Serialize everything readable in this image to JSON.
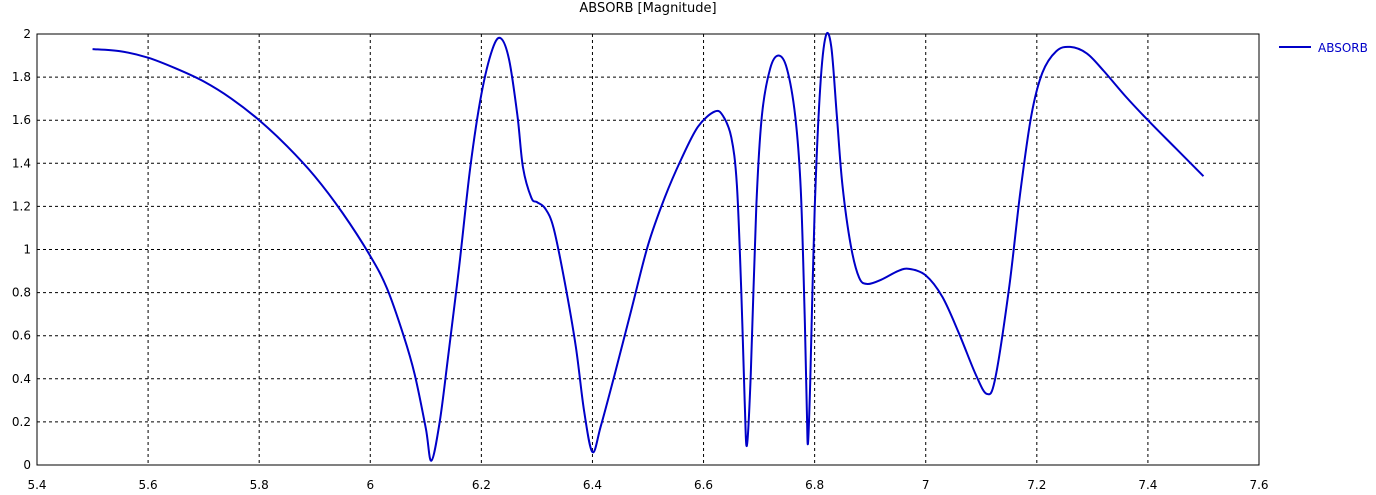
{
  "chart_data": {
    "type": "line",
    "title": "ABSORB [Magnitude]",
    "xlabel": "",
    "ylabel": "",
    "xlim": [
      5.4,
      7.6
    ],
    "ylim": [
      0,
      2
    ],
    "xticks": [
      "5.4",
      "5.6",
      "5.8",
      "6",
      "6.2",
      "6.4",
      "6.6",
      "6.8",
      "7",
      "7.2",
      "7.4",
      "7.6"
    ],
    "yticks": [
      "0",
      "0.2",
      "0.4",
      "0.6",
      "0.8",
      "1",
      "1.2",
      "1.4",
      "1.6",
      "1.8",
      "2"
    ],
    "grid": true,
    "legend_position": "top-right",
    "series": [
      {
        "name": "ABSORB",
        "color": "#0000c8",
        "points": [
          [
            5.5,
            1.93
          ],
          [
            5.55,
            1.92
          ],
          [
            5.6,
            1.89
          ],
          [
            5.65,
            1.84
          ],
          [
            5.7,
            1.78
          ],
          [
            5.75,
            1.7
          ],
          [
            5.8,
            1.6
          ],
          [
            5.85,
            1.48
          ],
          [
            5.9,
            1.34
          ],
          [
            5.95,
            1.17
          ],
          [
            6.0,
            0.97
          ],
          [
            6.03,
            0.82
          ],
          [
            6.06,
            0.6
          ],
          [
            6.08,
            0.42
          ],
          [
            6.1,
            0.17
          ],
          [
            6.11,
            0.02
          ],
          [
            6.125,
            0.2
          ],
          [
            6.14,
            0.5
          ],
          [
            6.16,
            0.92
          ],
          [
            6.18,
            1.38
          ],
          [
            6.2,
            1.72
          ],
          [
            6.22,
            1.93
          ],
          [
            6.235,
            1.98
          ],
          [
            6.25,
            1.88
          ],
          [
            6.265,
            1.62
          ],
          [
            6.275,
            1.38
          ],
          [
            6.29,
            1.24
          ],
          [
            6.3,
            1.22
          ],
          [
            6.315,
            1.19
          ],
          [
            6.33,
            1.1
          ],
          [
            6.35,
            0.85
          ],
          [
            6.37,
            0.55
          ],
          [
            6.385,
            0.25
          ],
          [
            6.4,
            0.06
          ],
          [
            6.415,
            0.18
          ],
          [
            6.44,
            0.42
          ],
          [
            6.47,
            0.72
          ],
          [
            6.5,
            1.02
          ],
          [
            6.53,
            1.24
          ],
          [
            6.56,
            1.42
          ],
          [
            6.59,
            1.57
          ],
          [
            6.62,
            1.64
          ],
          [
            6.635,
            1.62
          ],
          [
            6.65,
            1.52
          ],
          [
            6.66,
            1.3
          ],
          [
            6.668,
            0.8
          ],
          [
            6.674,
            0.3
          ],
          [
            6.678,
            0.09
          ],
          [
            6.685,
            0.42
          ],
          [
            6.695,
            1.2
          ],
          [
            6.705,
            1.62
          ],
          [
            6.72,
            1.84
          ],
          [
            6.735,
            1.9
          ],
          [
            6.75,
            1.84
          ],
          [
            6.765,
            1.62
          ],
          [
            6.775,
            1.28
          ],
          [
            6.782,
            0.7
          ],
          [
            6.786,
            0.25
          ],
          [
            6.788,
            0.1
          ],
          [
            6.792,
            0.38
          ],
          [
            6.8,
            1.18
          ],
          [
            6.81,
            1.75
          ],
          [
            6.82,
            1.99
          ],
          [
            6.83,
            1.94
          ],
          [
            6.84,
            1.62
          ],
          [
            6.85,
            1.3
          ],
          [
            6.865,
            1.02
          ],
          [
            6.88,
            0.87
          ],
          [
            6.895,
            0.84
          ],
          [
            6.92,
            0.86
          ],
          [
            6.95,
            0.9
          ],
          [
            6.97,
            0.91
          ],
          [
            7.0,
            0.88
          ],
          [
            7.03,
            0.78
          ],
          [
            7.06,
            0.61
          ],
          [
            7.09,
            0.42
          ],
          [
            7.11,
            0.33
          ],
          [
            7.125,
            0.4
          ],
          [
            7.15,
            0.82
          ],
          [
            7.17,
            1.26
          ],
          [
            7.19,
            1.62
          ],
          [
            7.21,
            1.82
          ],
          [
            7.235,
            1.92
          ],
          [
            7.26,
            1.94
          ],
          [
            7.29,
            1.91
          ],
          [
            7.32,
            1.83
          ],
          [
            7.36,
            1.71
          ],
          [
            7.4,
            1.6
          ],
          [
            7.45,
            1.47
          ],
          [
            7.5,
            1.34
          ]
        ]
      }
    ]
  }
}
